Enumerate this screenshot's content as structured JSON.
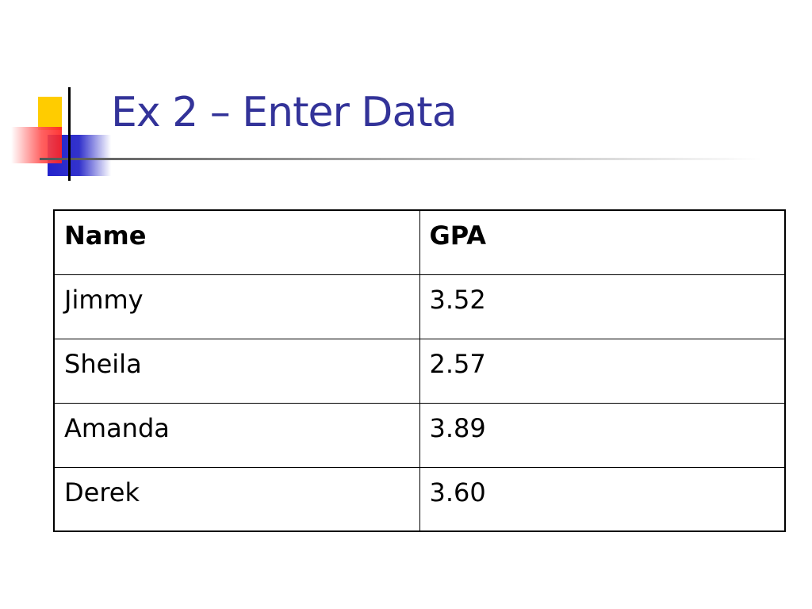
{
  "title": "Ex 2 – Enter Data",
  "table": {
    "header": [
      "Name",
      "GPA"
    ],
    "rows": [
      [
        "Jimmy",
        "3.52"
      ],
      [
        "Sheila",
        "2.57"
      ],
      [
        "Amanda",
        "3.89"
      ],
      [
        "Derek",
        "3.60"
      ]
    ]
  }
}
